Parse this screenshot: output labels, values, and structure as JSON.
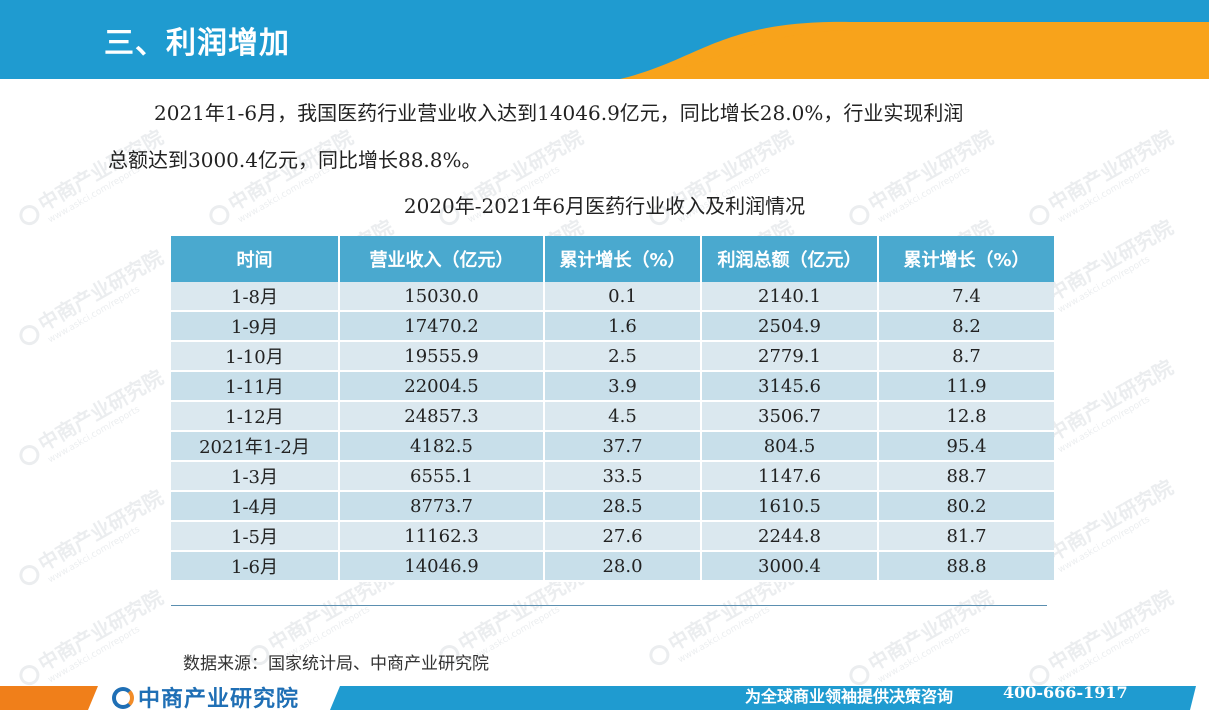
{
  "header": {
    "title": "三、利润增加"
  },
  "paragraph": {
    "line1": "2021年1-6月，我国医药行业营业收入达到14046.9亿元，同比增长28.0%，行业实现利润",
    "line2": "总额达到3000.4亿元，同比增长88.8%。"
  },
  "table": {
    "title": "2020年-2021年6月医药行业收入及利润情况",
    "headers": [
      "时间",
      "营业收入（亿元）",
      "累计增长（%）",
      "利润总额（亿元）",
      "累计增长（%）"
    ],
    "rows": [
      [
        "1-8月",
        "15030.0",
        "0.1",
        "2140.1",
        "7.4"
      ],
      [
        "1-9月",
        "17470.2",
        "1.6",
        "2504.9",
        "8.2"
      ],
      [
        "1-10月",
        "19555.9",
        "2.5",
        "2779.1",
        "8.7"
      ],
      [
        "1-11月",
        "22004.5",
        "3.9",
        "3145.6",
        "11.9"
      ],
      [
        "1-12月",
        "24857.3",
        "4.5",
        "3506.7",
        "12.8"
      ],
      [
        "2021年1-2月",
        "4182.5",
        "37.7",
        "804.5",
        "95.4"
      ],
      [
        "1-3月",
        "6555.1",
        "33.5",
        "1147.6",
        "88.7"
      ],
      [
        "1-4月",
        "8773.7",
        "28.5",
        "1610.5",
        "80.2"
      ],
      [
        "1-5月",
        "11162.3",
        "27.6",
        "2244.8",
        "81.7"
      ],
      [
        "1-6月",
        "14046.9",
        "28.0",
        "3000.4",
        "88.8"
      ]
    ]
  },
  "source": "数据来源：国家统计局、中商产业研究院",
  "watermark": {
    "main": "中商产业研究院",
    "sub": "www.askci.com/reports"
  },
  "footer": {
    "logo_text": "中商产业研究院",
    "slogan": "为全球商业领袖提供决策咨询",
    "phone": "400-666-1917"
  },
  "colors": {
    "header_blue": "#1f9bd0",
    "header_orange": "#f8a31b",
    "table_header": "#4aa9cf",
    "row_light": "#dbe8ef",
    "row_dark": "#c8dfea",
    "footer_blue": "#1f9bd0",
    "footer_orange": "#f07f1a"
  }
}
